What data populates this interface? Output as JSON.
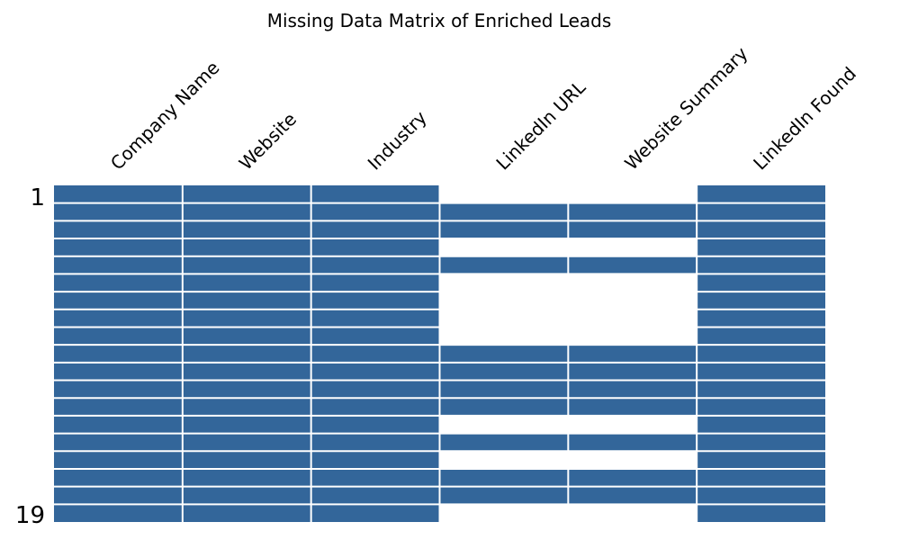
{
  "chart_data": {
    "type": "heatmap",
    "title": "Missing Data Matrix of Enriched Leads",
    "columns": [
      "Company Name",
      "Website",
      "Industry",
      "LinkedIn URL",
      "Website Summary",
      "LinkedIn Found"
    ],
    "row_count": 19,
    "row_labels": [
      "1",
      "19"
    ],
    "present": [
      [
        1,
        1,
        1,
        0,
        0,
        1
      ],
      [
        1,
        1,
        1,
        1,
        1,
        1
      ],
      [
        1,
        1,
        1,
        1,
        1,
        1
      ],
      [
        1,
        1,
        1,
        0,
        0,
        1
      ],
      [
        1,
        1,
        1,
        1,
        1,
        1
      ],
      [
        1,
        1,
        1,
        0,
        0,
        1
      ],
      [
        1,
        1,
        1,
        0,
        0,
        1
      ],
      [
        1,
        1,
        1,
        0,
        0,
        1
      ],
      [
        1,
        1,
        1,
        0,
        0,
        1
      ],
      [
        1,
        1,
        1,
        1,
        1,
        1
      ],
      [
        1,
        1,
        1,
        1,
        1,
        1
      ],
      [
        1,
        1,
        1,
        1,
        1,
        1
      ],
      [
        1,
        1,
        1,
        1,
        1,
        1
      ],
      [
        1,
        1,
        1,
        0,
        0,
        1
      ],
      [
        1,
        1,
        1,
        1,
        1,
        1
      ],
      [
        1,
        1,
        1,
        0,
        0,
        1
      ],
      [
        1,
        1,
        1,
        1,
        1,
        1
      ],
      [
        1,
        1,
        1,
        1,
        1,
        1
      ],
      [
        1,
        1,
        1,
        0,
        0,
        1
      ]
    ],
    "present_color": "#33669a",
    "missing_color": "#ffffff",
    "grid": false
  }
}
